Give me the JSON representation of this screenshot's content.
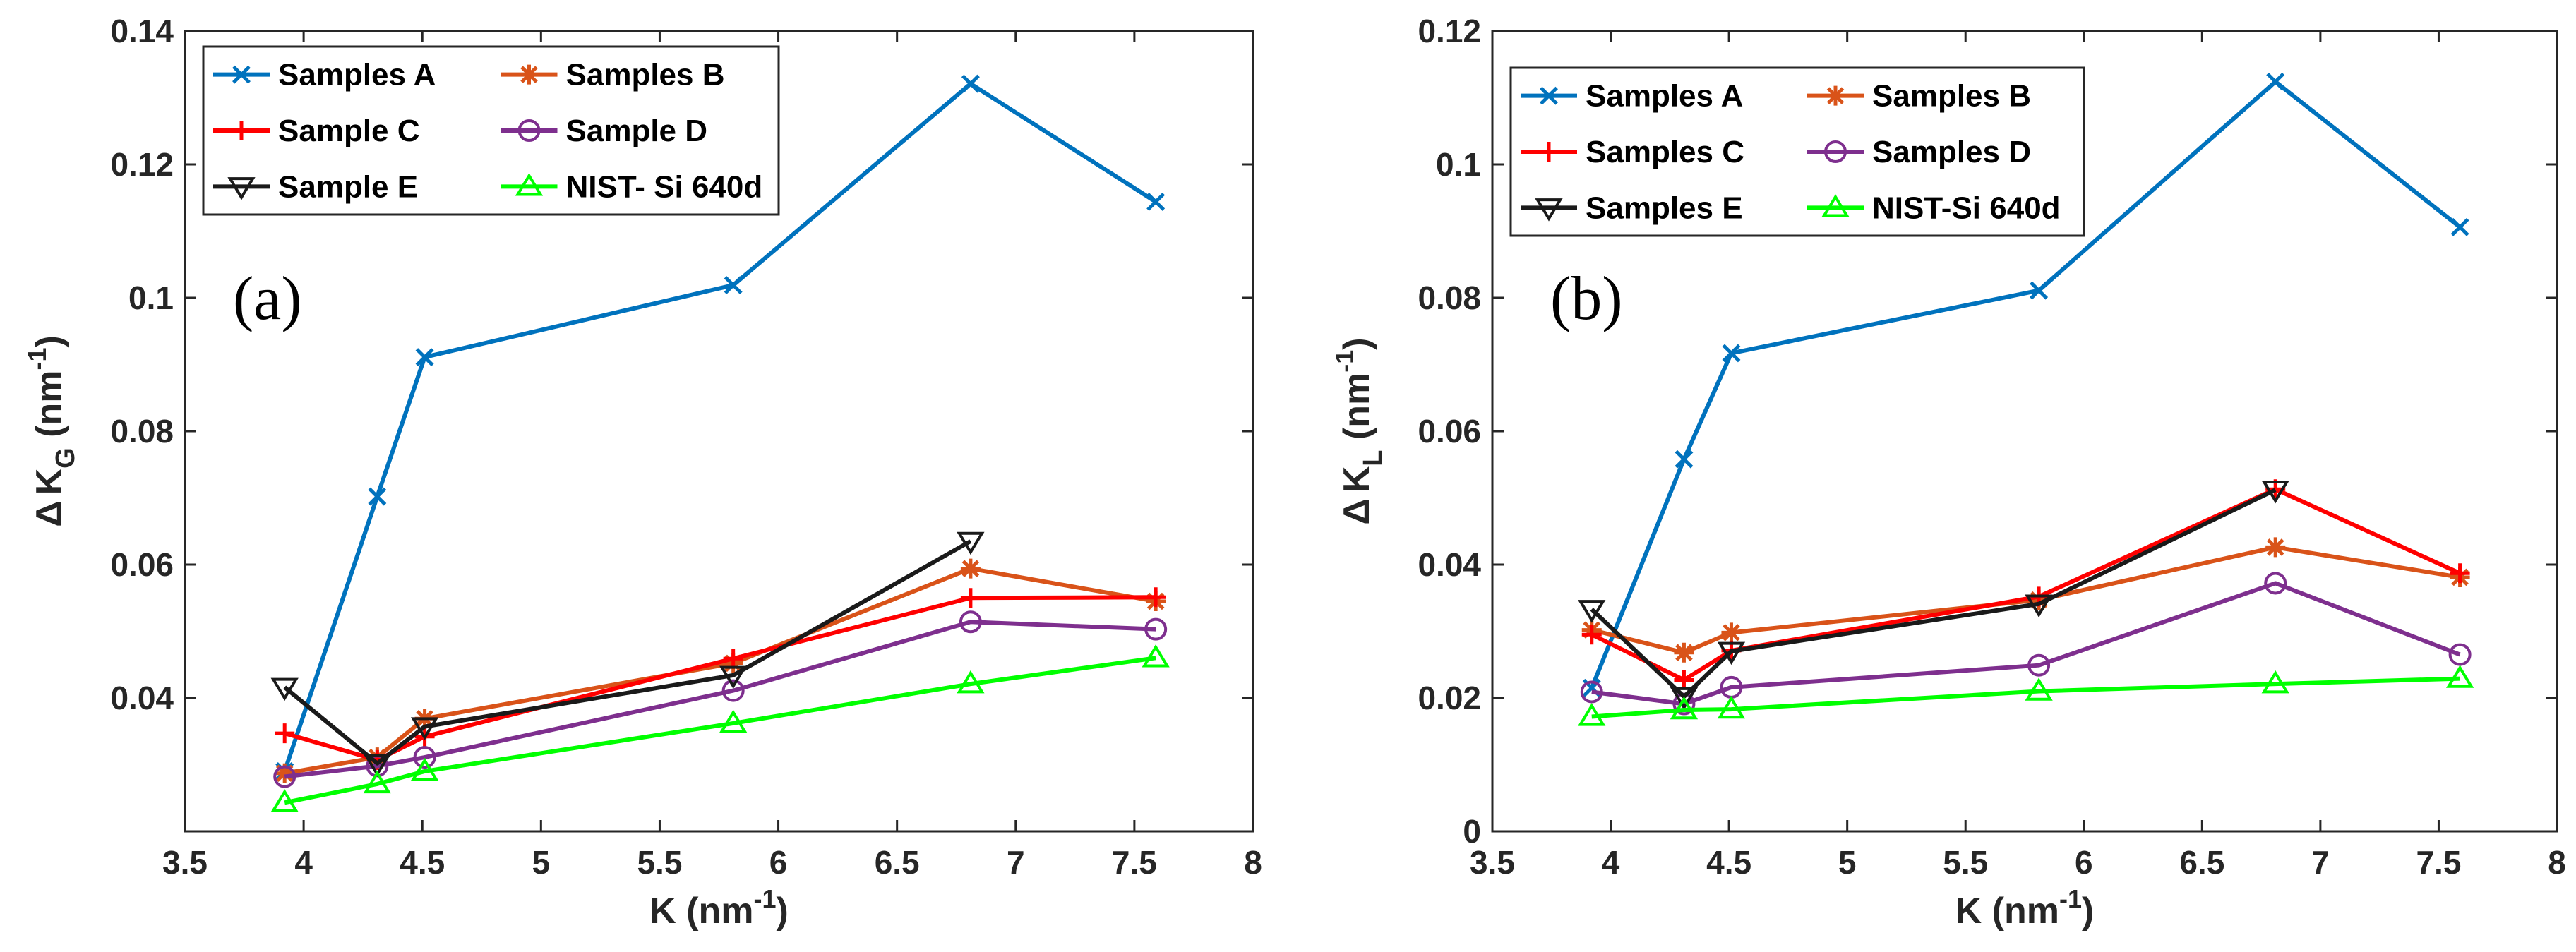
{
  "chart_data": [
    {
      "type": "line",
      "annotation": "(a)",
      "xlabel": "K (nm",
      "xlabel_sup": "-1",
      "xlabel_end": ")",
      "ylabel_delta": "Δ",
      "ylabel_main": "K",
      "ylabel_sub": "G",
      "ylabel_units": " (nm",
      "ylabel_sup": "-1",
      "ylabel_end": ")",
      "xlim": [
        3.5,
        8
      ],
      "ylim": [
        0.02,
        0.14
      ],
      "xticks": [
        3.5,
        4,
        4.5,
        5,
        5.5,
        6,
        6.5,
        7,
        7.5,
        8
      ],
      "xtick_labels": [
        "3.5",
        "4",
        "4.5",
        "5",
        "5.5",
        "6",
        "6.5",
        "7",
        "7.5",
        "8"
      ],
      "yticks": [
        0.04,
        0.06,
        0.08,
        0.1,
        0.12,
        0.14
      ],
      "ytick_labels": [
        "0.04",
        "0.06",
        "0.08",
        "0.1",
        "0.12",
        "0.14"
      ],
      "grid": false,
      "legend_position": "top-left",
      "x": [
        3.92,
        4.31,
        4.51,
        5.81,
        6.81,
        7.59
      ],
      "series": [
        {
          "name": "Samples A",
          "color": "#0072BD",
          "marker": "x",
          "values": [
            0.029,
            0.0702,
            0.0911,
            0.1019,
            0.1321,
            0.1144
          ]
        },
        {
          "name": "Samples B",
          "color": "#D95319",
          "marker": "asterisk",
          "values": [
            0.0287,
            0.0311,
            0.0369,
            0.0452,
            0.0594,
            0.0545
          ]
        },
        {
          "name": "Sample C",
          "color": "#FF0000",
          "marker": "plus",
          "values": [
            0.0347,
            0.0307,
            0.0342,
            0.0459,
            0.055,
            0.0551
          ]
        },
        {
          "name": "Sample D",
          "color": "#7E2F8E",
          "marker": "circle",
          "values": [
            0.0282,
            0.0298,
            0.0311,
            0.0411,
            0.0514,
            0.0503
          ]
        },
        {
          "name": "Sample E",
          "color": "#1A1A1A",
          "marker": "triangle-down",
          "values": [
            0.0416,
            0.0302,
            0.0357,
            0.0434,
            0.0635,
            null
          ]
        },
        {
          "name": "NIST- Si 640d",
          "color": "#00FF00",
          "marker": "triangle-up",
          "values": [
            0.0243,
            0.0271,
            0.029,
            0.0362,
            0.0421,
            0.046
          ]
        }
      ]
    },
    {
      "type": "line",
      "annotation": "(b)",
      "xlabel": "K (nm",
      "xlabel_sup": "-1",
      "xlabel_end": ")",
      "ylabel_delta": "Δ",
      "ylabel_main": "K",
      "ylabel_sub": "L",
      "ylabel_units": " (nm",
      "ylabel_sup": "-1",
      "ylabel_end": ")",
      "xlim": [
        3.5,
        8
      ],
      "ylim": [
        0,
        0.12
      ],
      "xticks": [
        3.5,
        4,
        4.5,
        5,
        5.5,
        6,
        6.5,
        7,
        7.5,
        8
      ],
      "xtick_labels": [
        "3.5",
        "4",
        "4.5",
        "5",
        "5.5",
        "6",
        "6.5",
        "7",
        "7.5",
        "8"
      ],
      "yticks": [
        0,
        0.02,
        0.04,
        0.06,
        0.08,
        0.1,
        0.12
      ],
      "ytick_labels": [
        "0",
        "0.02",
        "0.04",
        "0.06",
        "0.08",
        "0.1",
        "0.12"
      ],
      "grid": false,
      "legend_position": "top-left",
      "x": [
        3.92,
        4.31,
        4.51,
        5.81,
        6.81,
        7.59
      ],
      "series": [
        {
          "name": "Samples A",
          "color": "#0072BD",
          "marker": "x",
          "values": [
            0.0215,
            0.0558,
            0.0717,
            0.0811,
            0.1124,
            0.0906
          ]
        },
        {
          "name": "Samples B",
          "color": "#D95319",
          "marker": "asterisk",
          "values": [
            0.0302,
            0.0268,
            0.0298,
            0.0347,
            0.0426,
            0.0381
          ]
        },
        {
          "name": "Samples C",
          "color": "#FF0000",
          "marker": "plus",
          "values": [
            0.0295,
            0.0227,
            0.0271,
            0.0352,
            0.0513,
            0.0387
          ]
        },
        {
          "name": "Samples D",
          "color": "#7E2F8E",
          "marker": "circle",
          "values": [
            0.0209,
            0.0191,
            0.0216,
            0.0249,
            0.0372,
            0.0265
          ]
        },
        {
          "name": "Samples E",
          "color": "#1A1A1A",
          "marker": "triangle-down",
          "values": [
            0.0333,
            0.0202,
            0.027,
            0.0341,
            0.0512,
            null
          ]
        },
        {
          "name": "NIST-Si 640d",
          "color": "#00FF00",
          "marker": "triangle-up",
          "values": [
            0.0172,
            0.0182,
            0.0183,
            0.021,
            0.0221,
            0.0229
          ]
        }
      ]
    }
  ]
}
